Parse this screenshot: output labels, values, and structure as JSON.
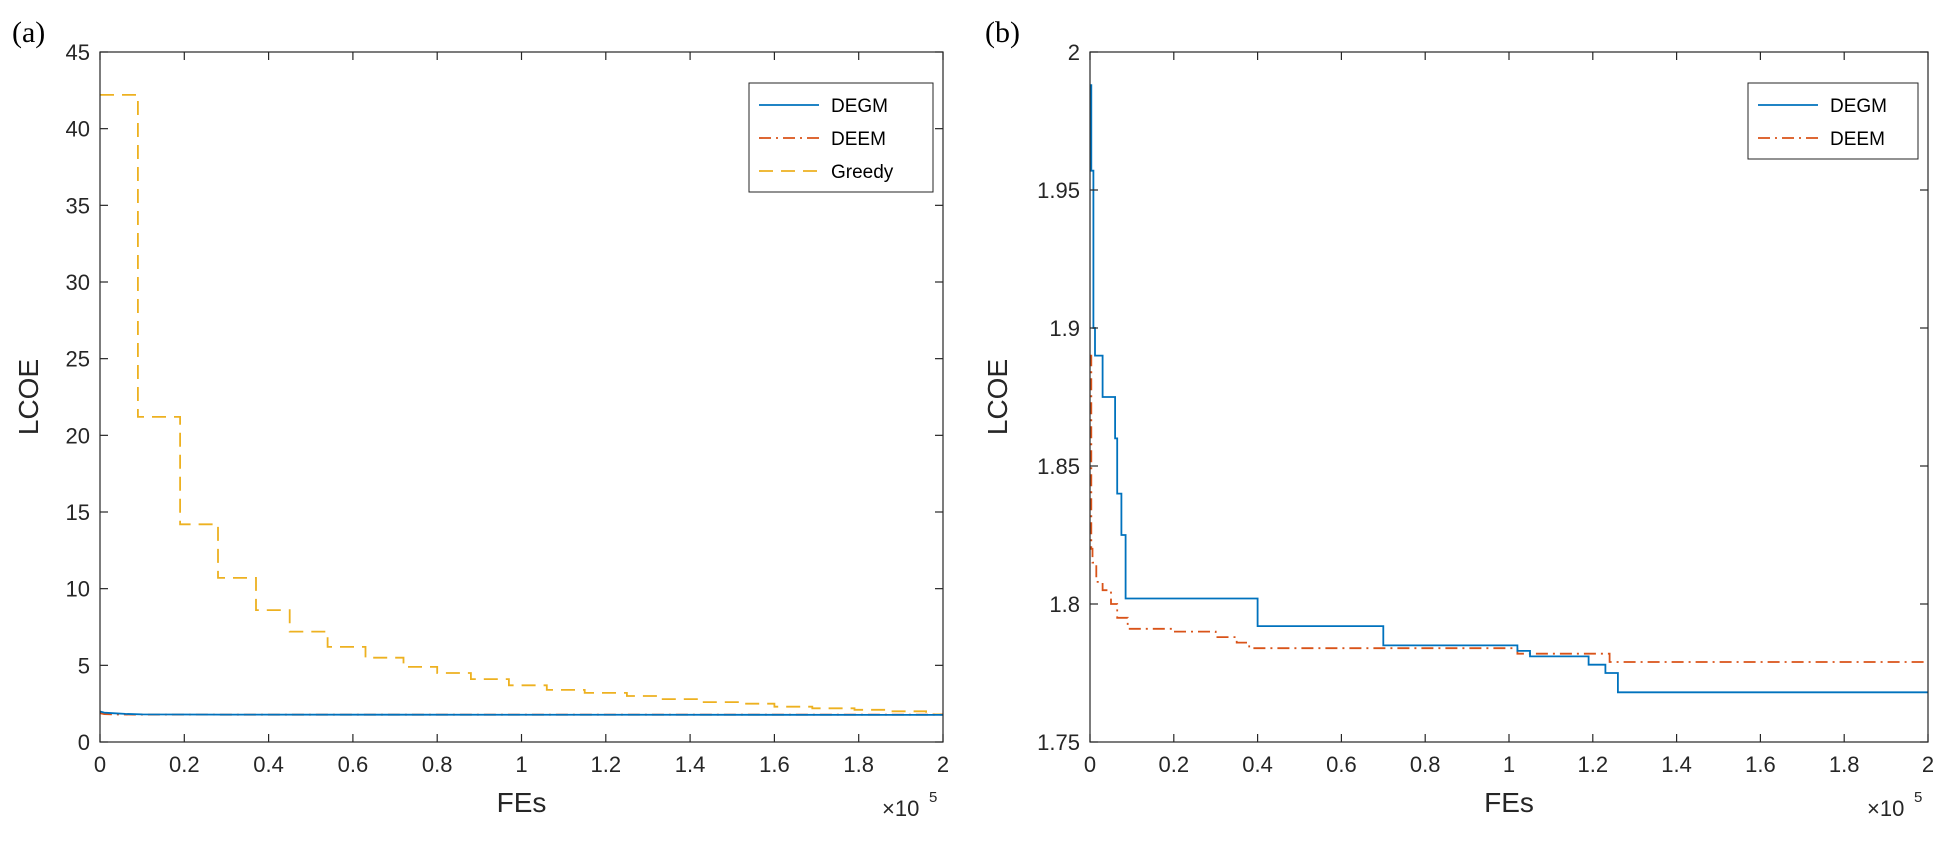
{
  "figure": {
    "panels": [
      "(a)",
      "(b)"
    ]
  },
  "chart_data": [
    {
      "panel_label": "(a)",
      "type": "line",
      "xlabel": "FEs",
      "ylabel": "LCOE",
      "x_multiplier_base": "×10",
      "x_multiplier_exp": "5",
      "xlim": [
        0,
        2
      ],
      "ylim": [
        0,
        45
      ],
      "xticks": [
        0,
        0.2,
        0.4,
        0.6,
        0.8,
        1,
        1.2,
        1.4,
        1.6,
        1.8,
        2
      ],
      "xtick_labels": [
        "0",
        "0.2",
        "0.4",
        "0.6",
        "0.8",
        "1",
        "1.2",
        "1.4",
        "1.6",
        "1.8",
        "2"
      ],
      "yticks": [
        0,
        5,
        10,
        15,
        20,
        25,
        30,
        35,
        40,
        45
      ],
      "ytick_labels": [
        "0",
        "5",
        "10",
        "15",
        "20",
        "25",
        "30",
        "35",
        "40",
        "45"
      ],
      "legend_position": "top-right",
      "series": [
        {
          "name": "DEGM",
          "color": "#0072BD",
          "dash": "solid",
          "x": [
            0,
            0.01,
            0.03,
            0.06,
            0.1,
            0.3,
            2.0
          ],
          "y": [
            1.99,
            1.92,
            1.88,
            1.83,
            1.8,
            1.79,
            1.77
          ]
        },
        {
          "name": "DEEM",
          "color": "#D95319",
          "dash": "dashdot",
          "x": [
            0,
            0.01,
            0.03,
            0.08,
            0.4,
            1.25,
            2.0
          ],
          "y": [
            1.88,
            1.82,
            1.8,
            1.79,
            1.78,
            1.78,
            1.78
          ]
        },
        {
          "name": "Greedy",
          "color": "#EDB120",
          "dash": "dashed",
          "x": [
            0,
            0.09,
            0.09,
            0.19,
            0.19,
            0.28,
            0.28,
            0.37,
            0.37,
            0.45,
            0.45,
            0.54,
            0.54,
            0.63,
            0.63,
            0.72,
            0.72,
            0.8,
            0.8,
            0.88,
            0.88,
            0.97,
            0.97,
            1.06,
            1.06,
            1.15,
            1.15,
            1.25,
            1.25,
            1.33,
            1.33,
            1.42,
            1.42,
            1.52,
            1.52,
            1.6,
            1.6,
            1.69,
            1.69,
            1.79,
            1.79,
            1.87,
            1.87,
            1.96,
            1.96,
            2.0
          ],
          "y": [
            42.2,
            42.2,
            21.2,
            21.2,
            14.2,
            14.2,
            10.7,
            10.7,
            8.6,
            8.6,
            7.2,
            7.2,
            6.2,
            6.2,
            5.5,
            5.5,
            4.9,
            4.9,
            4.5,
            4.5,
            4.1,
            4.1,
            3.7,
            3.7,
            3.4,
            3.4,
            3.2,
            3.2,
            3.0,
            3.0,
            2.8,
            2.8,
            2.6,
            2.6,
            2.5,
            2.5,
            2.3,
            2.3,
            2.2,
            2.2,
            2.1,
            2.1,
            2.0,
            2.0,
            1.8,
            1.8
          ]
        }
      ]
    },
    {
      "panel_label": "(b)",
      "type": "line",
      "xlabel": "FEs",
      "ylabel": "LCOE",
      "x_multiplier_base": "×10",
      "x_multiplier_exp": "5",
      "xlim": [
        0,
        2
      ],
      "ylim": [
        1.75,
        2
      ],
      "xticks": [
        0,
        0.2,
        0.4,
        0.6,
        0.8,
        1,
        1.2,
        1.4,
        1.6,
        1.8,
        2
      ],
      "xtick_labels": [
        "0",
        "0.2",
        "0.4",
        "0.6",
        "0.8",
        "1",
        "1.2",
        "1.4",
        "1.6",
        "1.8",
        "2"
      ],
      "yticks": [
        1.75,
        1.8,
        1.85,
        1.9,
        1.95,
        2
      ],
      "ytick_labels": [
        "1.75",
        "1.8",
        "1.85",
        "1.9",
        "1.95",
        "2"
      ],
      "legend_position": "top-right",
      "series": [
        {
          "name": "DEGM",
          "color": "#0072BD",
          "dash": "solid",
          "x": [
            0,
            0.003,
            0.003,
            0.008,
            0.008,
            0.012,
            0.012,
            0.03,
            0.03,
            0.06,
            0.06,
            0.065,
            0.065,
            0.075,
            0.075,
            0.085,
            0.085,
            0.4,
            0.4,
            0.7,
            0.7,
            1.02,
            1.02,
            1.05,
            1.05,
            1.19,
            1.19,
            1.23,
            1.23,
            1.26,
            1.26,
            2.0
          ],
          "y": [
            1.988,
            1.988,
            1.957,
            1.957,
            1.9,
            1.9,
            1.89,
            1.89,
            1.875,
            1.875,
            1.86,
            1.86,
            1.84,
            1.84,
            1.825,
            1.825,
            1.802,
            1.802,
            1.792,
            1.792,
            1.785,
            1.785,
            1.783,
            1.783,
            1.781,
            1.781,
            1.778,
            1.778,
            1.775,
            1.775,
            1.768,
            1.768
          ]
        },
        {
          "name": "DEEM",
          "color": "#D95319",
          "dash": "dashdot",
          "x": [
            0,
            0.003,
            0.003,
            0.006,
            0.006,
            0.015,
            0.015,
            0.03,
            0.03,
            0.05,
            0.05,
            0.065,
            0.065,
            0.09,
            0.09,
            0.2,
            0.2,
            0.3,
            0.3,
            0.35,
            0.35,
            0.38,
            0.38,
            1.02,
            1.02,
            1.24,
            1.24,
            2.0
          ],
          "y": [
            1.89,
            1.89,
            1.82,
            1.82,
            1.815,
            1.815,
            1.808,
            1.808,
            1.805,
            1.805,
            1.8,
            1.8,
            1.795,
            1.795,
            1.791,
            1.791,
            1.79,
            1.79,
            1.788,
            1.788,
            1.786,
            1.786,
            1.784,
            1.784,
            1.782,
            1.782,
            1.779,
            1.779
          ]
        }
      ]
    }
  ]
}
